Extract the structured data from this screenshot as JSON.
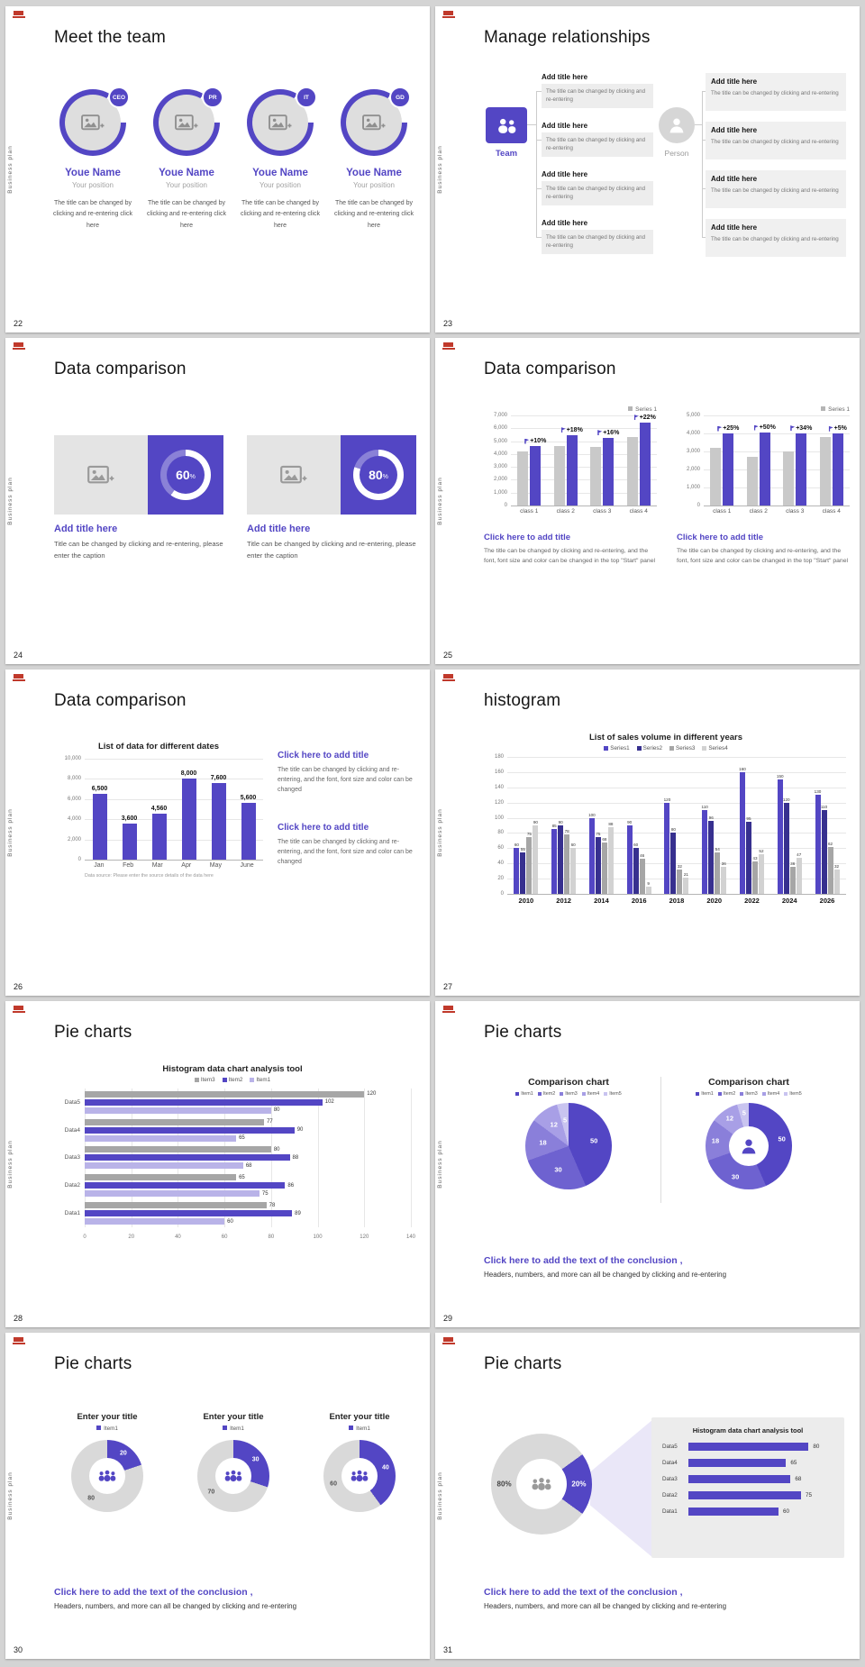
{
  "brand": {
    "accent": "#5346c4",
    "side_label": "Business plan"
  },
  "common": {
    "conclusion_title": "Click here to add the text of the conclusion ,",
    "conclusion_body": "Headers, numbers, and more can all be changed by clicking and re-entering"
  },
  "s22": {
    "number": "22",
    "title": "Meet the team",
    "members": [
      {
        "badge": "CEO",
        "name": "Youe Name",
        "position": "Your position",
        "desc": "The title can be changed by clicking and re-entering click here"
      },
      {
        "badge": "PR",
        "name": "Youe Name",
        "position": "Your position",
        "desc": "The title can be changed by clicking and re-entering click here"
      },
      {
        "badge": "IT",
        "name": "Youe Name",
        "position": "Your position",
        "desc": "The title can be changed by clicking and re-entering click here"
      },
      {
        "badge": "GD",
        "name": "Youe Name",
        "position": "Your position",
        "desc": "The title can be changed by clicking and re-entering click here"
      }
    ]
  },
  "s23": {
    "number": "23",
    "title": "Manage relationships",
    "team_label": "Team",
    "person_label": "Person",
    "left_items": [
      {
        "title": "Add title here",
        "desc": "The title can be changed by clicking and re-entering"
      },
      {
        "title": "Add title here",
        "desc": "The title can be changed by clicking and re-entering"
      },
      {
        "title": "Add title here",
        "desc": "The title can be changed by clicking and re-entering"
      },
      {
        "title": "Add title here",
        "desc": "The title can be changed by clicking and re-entering"
      }
    ],
    "right_items": [
      {
        "title": "Add title here",
        "desc": "The title can be changed by clicking and re-entering"
      },
      {
        "title": "Add title here",
        "desc": "The title can be changed by clicking and re-entering"
      },
      {
        "title": "Add title here",
        "desc": "The title can be changed by clicking and re-entering"
      },
      {
        "title": "Add title here",
        "desc": "The title can be changed by clicking and re-entering"
      }
    ]
  },
  "s24": {
    "number": "24",
    "title": "Data comparison",
    "cards": [
      {
        "value": 60,
        "unit": "%",
        "title": "Add title here",
        "desc": "Title can be changed by clicking and re-entering, please enter the caption"
      },
      {
        "value": 80,
        "unit": "%",
        "title": "Add title here",
        "desc": "Title can be changed by clicking and re-entering, please enter the caption"
      }
    ]
  },
  "s25": {
    "number": "25",
    "title": "Data comparison",
    "caption_title": "Click here to add title",
    "caption_body": "The title can be changed by clicking and re-entering, and the font, font size and color can be changed in the top \"Start\" panel",
    "charts": [
      {
        "legend": "Series 1",
        "ymax": 7000,
        "yticks": [
          "7,000",
          "6,000",
          "5,000",
          "4,000",
          "3,000",
          "2,000",
          "1,000",
          "0"
        ],
        "categories": [
          "class 1",
          "class 2",
          "class 3",
          "class 4"
        ],
        "series_a": [
          4200,
          4650,
          4550,
          5300
        ],
        "series_b": [
          4620,
          5490,
          5280,
          6470
        ],
        "labels": [
          "+10%",
          "+18%",
          "+16%",
          "+22%"
        ]
      },
      {
        "legend": "Series 1",
        "ymax": 5000,
        "yticks": [
          "5,000",
          "4,000",
          "3,000",
          "2,000",
          "1,000",
          "0"
        ],
        "categories": [
          "class 1",
          "class 2",
          "class 3",
          "class 4"
        ],
        "series_a": [
          3200,
          2700,
          3000,
          3800
        ],
        "series_b": [
          4000,
          4050,
          4020,
          3990
        ],
        "labels": [
          "+25%",
          "+50%",
          "+34%",
          "+5%"
        ]
      }
    ]
  },
  "s26": {
    "number": "26",
    "title": "Data comparison",
    "chart": {
      "title": "List of data for different dates",
      "ymax": 10000,
      "yticks": [
        "10,000",
        "8,000",
        "6,000",
        "4,000",
        "2,000",
        "0"
      ],
      "categories": [
        "Jan",
        "Feb",
        "Mar",
        "Apr",
        "May",
        "June"
      ],
      "values": [
        6500,
        3600,
        4560,
        8000,
        7600,
        5600
      ],
      "value_labels": [
        "6,500",
        "3,600",
        "4,560",
        "8,000",
        "7,600",
        "5,600"
      ],
      "source": "Data source: Please enter the source details of the data here"
    },
    "blocks": [
      {
        "title": "Click here to add title",
        "body": "The title can be changed by clicking and re-entering, and the font, font size and color can be changed"
      },
      {
        "title": "Click here to add title",
        "body": "The title can be changed by clicking and re-entering, and the font, font size and color can be changed"
      }
    ]
  },
  "s27": {
    "number": "27",
    "title": "histogram",
    "chart": {
      "title": "List of sales volume in different years",
      "ymax": 180,
      "yticks": [
        "180",
        "160",
        "140",
        "120",
        "100",
        "80",
        "60",
        "40",
        "20",
        "0"
      ],
      "categories": [
        "2010",
        "2012",
        "2014",
        "2016",
        "2018",
        "2020",
        "2022",
        "2024",
        "2026"
      ],
      "series": [
        {
          "name": "Series1",
          "color": "#5346c4",
          "values": [
            60,
            85,
            100,
            90,
            120,
            110,
            160,
            150,
            130
          ]
        },
        {
          "name": "Series2",
          "color": "#37308f",
          "values": [
            55,
            90,
            75,
            60,
            80,
            96,
            95,
            120,
            110
          ]
        },
        {
          "name": "Series3",
          "color": "#a6a6a6",
          "values": [
            75,
            78,
            68,
            46,
            32,
            54,
            43,
            36,
            62
          ]
        },
        {
          "name": "Series4",
          "color": "#d2d2d2",
          "values": [
            90,
            60,
            88,
            9,
            21,
            36,
            52,
            47,
            32
          ]
        }
      ]
    }
  },
  "s28": {
    "number": "28",
    "title": "Pie charts",
    "chart": {
      "title": "Histogram data chart analysis tool",
      "xmax": 140,
      "xticks": [
        "0",
        "20",
        "40",
        "60",
        "80",
        "100",
        "120",
        "140"
      ],
      "categories": [
        "Data5",
        "Data4",
        "Data3",
        "Data2",
        "Data1"
      ],
      "series": [
        {
          "name": "Item3",
          "color": "#a6a6a6",
          "values": [
            120,
            77,
            80,
            65,
            78
          ]
        },
        {
          "name": "Item2",
          "color": "#5346c4",
          "values": [
            102,
            90,
            88,
            86,
            89
          ]
        },
        {
          "name": "Item1",
          "color": "#b9b3e8",
          "values": [
            80,
            65,
            68,
            75,
            60
          ]
        }
      ]
    }
  },
  "s29": {
    "number": "29",
    "title": "Pie charts",
    "pies": [
      {
        "title": "Comparison chart",
        "type": "pie"
      },
      {
        "title": "Comparison chart",
        "type": "donut"
      }
    ],
    "legend": [
      "Item1",
      "Item2",
      "Item3",
      "Item4",
      "Item5"
    ],
    "values": [
      50,
      30,
      18,
      12,
      5
    ],
    "colors": [
      "#5346c4",
      "#6e62d0",
      "#8a7fda",
      "#a89fe6",
      "#c9c4f0"
    ]
  },
  "s30": {
    "number": "30",
    "title": "Pie charts",
    "donuts": [
      {
        "title": "Enter your title",
        "legend": "Item1",
        "value": 20,
        "rest": 80
      },
      {
        "title": "Enter your title",
        "legend": "Item1",
        "value": 30,
        "rest": 70
      },
      {
        "title": "Enter your title",
        "legend": "Item1",
        "value": 40,
        "rest": 60
      }
    ]
  },
  "s31": {
    "number": "31",
    "title": "Pie charts",
    "donut": {
      "value": 20,
      "value_label": "20%",
      "rest_label": "80%"
    },
    "panel": {
      "title": "Histogram data chart analysis tool",
      "categories": [
        "Data5",
        "Data4",
        "Data3",
        "Data2",
        "Data1"
      ],
      "values": [
        80,
        65,
        68,
        75,
        60
      ],
      "xmax": 90
    }
  },
  "chart_data": [
    {
      "type": "bar",
      "slide": "25",
      "categories": [
        "class 1",
        "class 2",
        "class 3",
        "class 4"
      ],
      "series": [
        {
          "name": "base",
          "values": [
            4200,
            4650,
            4550,
            5300
          ]
        },
        {
          "name": "Series 1",
          "values": [
            4620,
            5490,
            5280,
            6470
          ]
        }
      ],
      "annotations": [
        "+10%",
        "+18%",
        "+16%",
        "+22%"
      ],
      "ylim": [
        0,
        7000
      ]
    },
    {
      "type": "bar",
      "slide": "25",
      "categories": [
        "class 1",
        "class 2",
        "class 3",
        "class 4"
      ],
      "series": [
        {
          "name": "base",
          "values": [
            3200,
            2700,
            3000,
            3800
          ]
        },
        {
          "name": "Series 1",
          "values": [
            4000,
            4050,
            4020,
            3990
          ]
        }
      ],
      "annotations": [
        "+25%",
        "+50%",
        "+34%",
        "+5%"
      ],
      "ylim": [
        0,
        5000
      ]
    },
    {
      "type": "bar",
      "slide": "26",
      "title": "List of data for different dates",
      "categories": [
        "Jan",
        "Feb",
        "Mar",
        "Apr",
        "May",
        "June"
      ],
      "values": [
        6500,
        3600,
        4560,
        8000,
        7600,
        5600
      ],
      "ylim": [
        0,
        10000
      ]
    },
    {
      "type": "bar",
      "slide": "27",
      "title": "List of sales volume in different years",
      "categories": [
        "2010",
        "2012",
        "2014",
        "2016",
        "2018",
        "2020",
        "2022",
        "2024",
        "2026"
      ],
      "series": [
        {
          "name": "Series1",
          "values": [
            60,
            85,
            100,
            90,
            120,
            110,
            160,
            150,
            130
          ]
        },
        {
          "name": "Series2",
          "values": [
            55,
            90,
            75,
            60,
            80,
            96,
            95,
            120,
            110
          ]
        },
        {
          "name": "Series3",
          "values": [
            75,
            78,
            68,
            46,
            32,
            54,
            43,
            36,
            62
          ]
        },
        {
          "name": "Series4",
          "values": [
            90,
            60,
            88,
            9,
            21,
            36,
            52,
            47,
            32
          ]
        }
      ],
      "ylim": [
        0,
        180
      ]
    },
    {
      "type": "bar",
      "slide": "28",
      "title": "Histogram data chart analysis tool",
      "orientation": "horizontal",
      "categories": [
        "Data5",
        "Data4",
        "Data3",
        "Data2",
        "Data1"
      ],
      "series": [
        {
          "name": "Item3",
          "values": [
            120,
            77,
            80,
            65,
            78
          ]
        },
        {
          "name": "Item2",
          "values": [
            102,
            90,
            88,
            86,
            89
          ]
        },
        {
          "name": "Item1",
          "values": [
            80,
            65,
            68,
            75,
            60
          ]
        }
      ],
      "xlim": [
        0,
        140
      ]
    },
    {
      "type": "pie",
      "slide": "29",
      "title": "Comparison chart",
      "labels": [
        "Item1",
        "Item2",
        "Item3",
        "Item4",
        "Item5"
      ],
      "values": [
        50,
        30,
        18,
        12,
        5
      ]
    },
    {
      "type": "pie",
      "slide": "29",
      "title": "Comparison chart",
      "labels": [
        "Item1",
        "Item2",
        "Item3",
        "Item4",
        "Item5"
      ],
      "values": [
        50,
        30,
        18,
        12,
        5
      ]
    },
    {
      "type": "pie",
      "slide": "30",
      "title": "Enter your title",
      "labels": [
        "Item1",
        "rest"
      ],
      "values": [
        20,
        80
      ]
    },
    {
      "type": "pie",
      "slide": "30",
      "title": "Enter your title",
      "labels": [
        "Item1",
        "rest"
      ],
      "values": [
        30,
        70
      ]
    },
    {
      "type": "pie",
      "slide": "30",
      "title": "Enter your title",
      "labels": [
        "Item1",
        "rest"
      ],
      "values": [
        40,
        60
      ]
    },
    {
      "type": "pie",
      "slide": "31",
      "labels": [
        "20%",
        "80%"
      ],
      "values": [
        20,
        80
      ]
    },
    {
      "type": "bar",
      "slide": "31",
      "title": "Histogram data chart analysis tool",
      "orientation": "horizontal",
      "categories": [
        "Data5",
        "Data4",
        "Data3",
        "Data2",
        "Data1"
      ],
      "values": [
        80,
        65,
        68,
        75,
        60
      ]
    }
  ]
}
